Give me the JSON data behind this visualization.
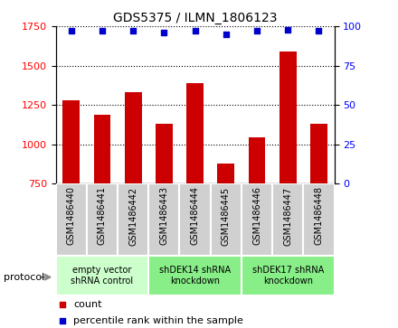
{
  "title": "GDS5375 / ILMN_1806123",
  "samples": [
    "GSM1486440",
    "GSM1486441",
    "GSM1486442",
    "GSM1486443",
    "GSM1486444",
    "GSM1486445",
    "GSM1486446",
    "GSM1486447",
    "GSM1486448"
  ],
  "counts": [
    1280,
    1185,
    1330,
    1130,
    1390,
    880,
    1045,
    1590,
    1130
  ],
  "percentile_ranks": [
    97,
    97,
    97,
    96,
    97,
    95,
    97,
    98,
    97
  ],
  "ylim_left": [
    750,
    1750
  ],
  "ylim_right": [
    0,
    100
  ],
  "yticks_left": [
    750,
    1000,
    1250,
    1500,
    1750
  ],
  "yticks_right": [
    0,
    25,
    50,
    75,
    100
  ],
  "bar_color": "#cc0000",
  "dot_color": "#0000cc",
  "groups": [
    {
      "label": "empty vector\nshRNA control",
      "start": 0,
      "end": 3,
      "color": "#ccffcc"
    },
    {
      "label": "shDEK14 shRNA\nknockdown",
      "start": 3,
      "end": 6,
      "color": "#88ee88"
    },
    {
      "label": "shDEK17 shRNA\nknockdown",
      "start": 6,
      "end": 9,
      "color": "#88ee88"
    }
  ],
  "legend_count_color": "#cc0000",
  "legend_percentile_color": "#0000cc",
  "protocol_label": "protocol",
  "background_gray": "#d0d0d0",
  "title_fontsize": 10
}
